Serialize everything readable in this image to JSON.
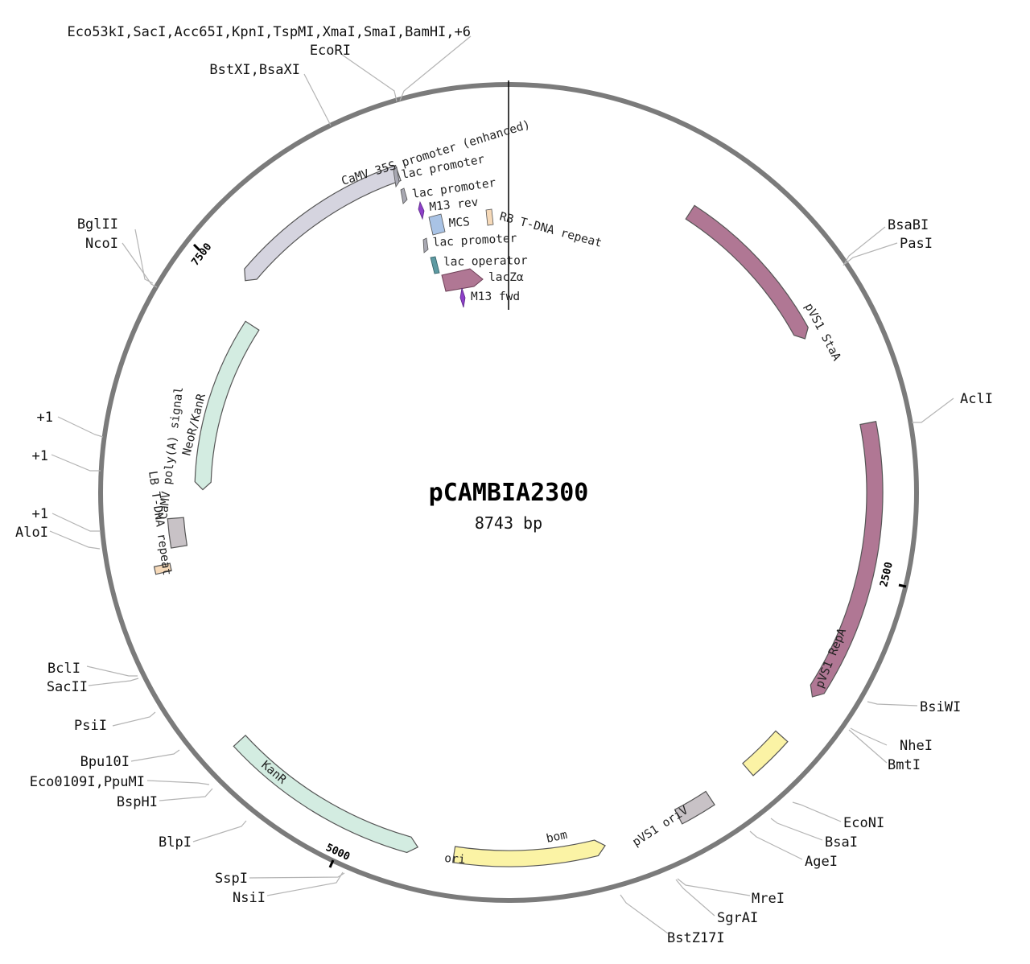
{
  "plasmid": {
    "name": "pCAMBIA2300",
    "length_label": "8743 bp",
    "length": 8743
  },
  "ticks": [
    {
      "label": "2500",
      "pos": 2500
    },
    {
      "label": "5000",
      "pos": 5000
    },
    {
      "label": "7500",
      "pos": 7500
    }
  ],
  "features": [
    {
      "name": "pVS1 StaA",
      "start": 800,
      "end": 1520,
      "strand": 1,
      "color": "#b07794"
    },
    {
      "name": "pVS1 RepA",
      "start": 1920,
      "end": 3010,
      "strand": 1,
      "color": "#b07794"
    },
    {
      "name": "pVS1 oriV",
      "start": 3200,
      "end": 3380,
      "strand": 0,
      "color": "#fbf3a5"
    },
    {
      "name": "bom",
      "start": 3560,
      "end": 3700,
      "strand": 0,
      "color": "#c8c2c6"
    },
    {
      "name": "ori",
      "start": 4000,
      "end": 4580,
      "strand": -1,
      "color": "#fbf3a5"
    },
    {
      "name": "KanR",
      "start": 4720,
      "end": 5520,
      "strand": -1,
      "color": "#d3ece1"
    },
    {
      "name": "LB T-DNA repeat",
      "start": 6240,
      "end": 6270,
      "strand": 0,
      "color": "#f6d9b8"
    },
    {
      "name": "CaMV poly(A) signal",
      "start": 6330,
      "end": 6450,
      "strand": 0,
      "color": "#c8c2c6"
    },
    {
      "name": "NeoR/KanR",
      "start": 6570,
      "end": 7360,
      "strand": -1,
      "color": "#d3ece1"
    },
    {
      "name": "CaMV 35S promoter (enhanced)",
      "start": 7500,
      "end": 8280,
      "strand": -1,
      "color": "#d5d4df"
    }
  ],
  "inner_features": [
    {
      "name": "lac promoter",
      "shape": "sliver",
      "color": "#a8a8b2"
    },
    {
      "name": "lac promoter",
      "shape": "sliver",
      "color": "#a8a8b2"
    },
    {
      "name": "M13 rev",
      "shape": "diamond",
      "color": "#8e3fc9"
    },
    {
      "name": "MCS",
      "shape": "box",
      "color": "#a9c3e5"
    },
    {
      "name": "RB T-DNA repeat",
      "shape": "box",
      "color": "#f6d9b8"
    },
    {
      "name": "lac promoter",
      "shape": "sliver",
      "color": "#a8a8b2"
    },
    {
      "name": "lac operator",
      "shape": "box",
      "color": "#5e9aa2"
    },
    {
      "name": "lacZα",
      "shape": "arrow",
      "color": "#b07794"
    },
    {
      "name": "M13 fwd",
      "shape": "diamond",
      "color": "#8e3fc9"
    }
  ],
  "enzymes": [
    {
      "text": "Eco53kI,SacI,Acc65I,KpnI,TspMI,XmaI,SmaI,BamHI,+6",
      "pos": 8600
    },
    {
      "text": "EcoRI",
      "pos": 8585
    },
    {
      "text": "BstXI,BsaXI",
      "pos": 8410
    },
    {
      "text": "BsaBI",
      "pos": 750
    },
    {
      "text": "PasI",
      "pos": 760
    },
    {
      "text": "AclI",
      "pos": 1520
    },
    {
      "text": "BsiWI",
      "pos": 2880
    },
    {
      "text": "NheI",
      "pos": 3000
    },
    {
      "text": "BmtI",
      "pos": 3010
    },
    {
      "text": "EcoNI",
      "pos": 3320
    },
    {
      "text": "BsaI",
      "pos": 3400
    },
    {
      "text": "AgeI",
      "pos": 3450
    },
    {
      "text": "MreI",
      "pos": 3700
    },
    {
      "text": "SgrAI",
      "pos": 3710
    },
    {
      "text": "BstZ17I",
      "pos": 3880
    },
    {
      "text": "SspI",
      "pos": 4990
    },
    {
      "text": "NsiI",
      "pos": 4980
    },
    {
      "text": "BlpI",
      "pos": 5320
    },
    {
      "text": "BspHI",
      "pos": 5490
    },
    {
      "text": "Eco0109I,PpuMI",
      "pos": 5510
    },
    {
      "text": "Bpu10I",
      "pos": 5560
    },
    {
      "text": "PsiI",
      "pos": 5680
    },
    {
      "text": "SacII",
      "pos": 5810
    },
    {
      "text": "BclI",
      "pos": 5820
    },
    {
      "text": "AloI",
      "pos": 6300
    },
    {
      "text": "+1",
      "pos": 6320
    },
    {
      "text": "+1",
      "pos": 6500
    },
    {
      "text": "+1",
      "pos": 6620
    },
    {
      "text": "NcoI",
      "pos": 7520
    },
    {
      "text": "BglII",
      "pos": 7540
    }
  ],
  "colors": {
    "backbone": "#7b7b7b",
    "feature_stroke": "#555555"
  }
}
